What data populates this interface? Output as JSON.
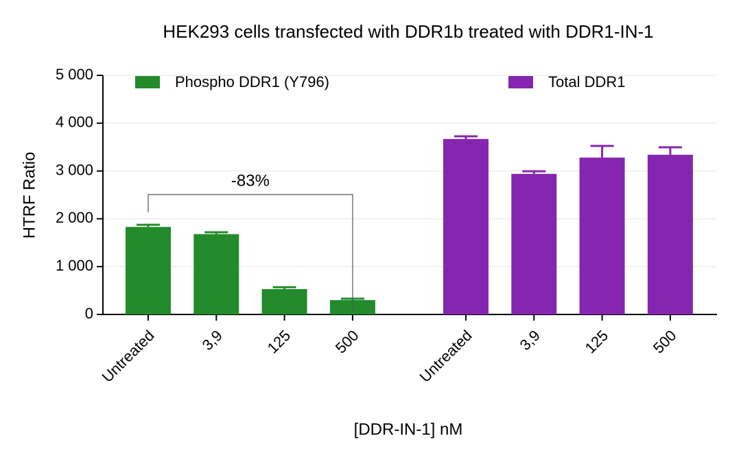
{
  "chart_data": {
    "type": "bar",
    "title": "HEK293 cells transfected with DDR1b treated with DDR1-IN-1",
    "x_label": "[DDR-IN-1] nM",
    "y_label": "HTRF Ratio",
    "categories": [
      "Untreated",
      "3,9",
      "125",
      "500"
    ],
    "series": [
      {
        "name": "Phospho DDR1 (Y796)",
        "color": "#238b2c",
        "values": [
          1830,
          1680,
          530,
          300
        ],
        "errors": [
          45,
          40,
          40,
          30
        ]
      },
      {
        "name": "Total DDR1",
        "color": "#8526b0",
        "values": [
          3670,
          2940,
          3280,
          3340
        ],
        "errors": [
          55,
          55,
          245,
          155
        ]
      }
    ],
    "ylim": [
      0,
      5000
    ],
    "yticks": [
      0,
      {
        "value": 1000,
        "label": "1 000"
      },
      {
        "value": 2000,
        "label": "2 000"
      },
      {
        "value": 3000,
        "label": "3 000"
      },
      {
        "value": 4000,
        "label": "4 000"
      },
      {
        "value": 5000,
        "label": "5 000"
      }
    ],
    "grid": true,
    "legend": "top",
    "annotation": "-83%"
  }
}
